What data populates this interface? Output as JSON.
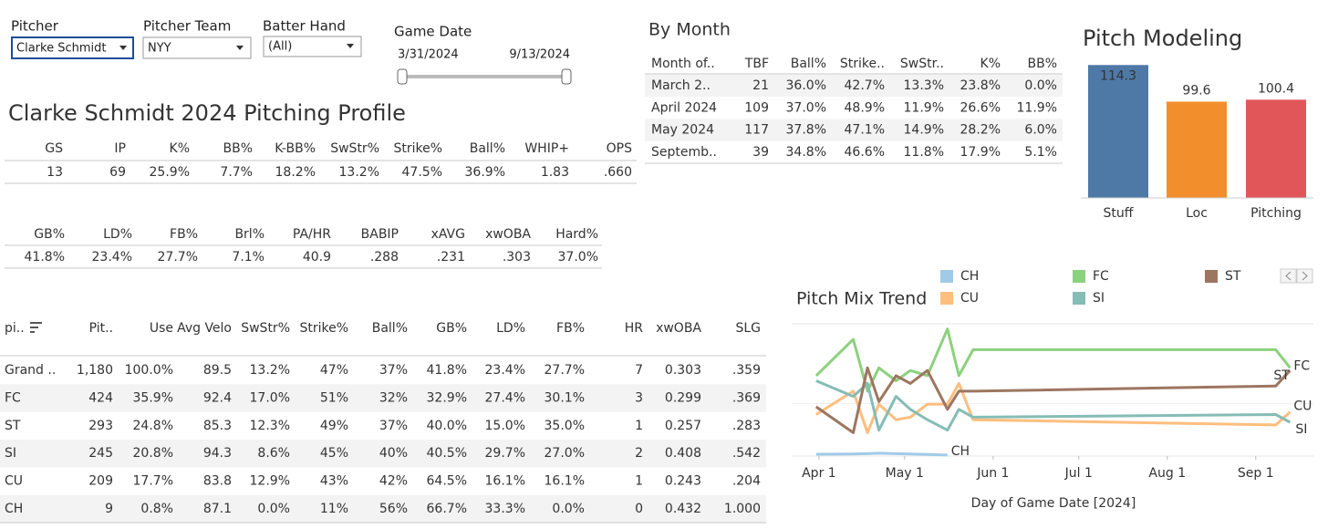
{
  "filters": [
    {
      "label": "Pitcher",
      "value": "Clarke Schmidt"
    },
    {
      "label": "Pitcher Team",
      "value": "NYY"
    },
    {
      "label": "Batter Hand",
      "value": "(All)"
    }
  ],
  "game_date": {
    "label": "Game Date",
    "start": "3/31/2024",
    "end": "9/13/2024"
  },
  "profile": {
    "title": "Clarke Schmidt 2024 Pitching Profile",
    "tables": [
      {
        "headers": [
          "GS",
          "IP",
          "K%",
          "BB%",
          "K-BB%",
          "SwStr%",
          "Strike%",
          "Ball%",
          "WHIP+",
          "OPS"
        ],
        "rows": [
          [
            "13",
            "69",
            "25.9%",
            "7.7%",
            "18.2%",
            "13.2%",
            "47.5%",
            "36.9%",
            "1.83",
            ".660"
          ]
        ]
      },
      {
        "headers": [
          "GB%",
          "LD%",
          "FB%",
          "Brl%",
          "PA/HR",
          "BABIP",
          "xAVG",
          "xwOBA",
          "Hard%"
        ],
        "rows": [
          [
            "41.8%",
            "23.4%",
            "27.7%",
            "7.1%",
            "40.9",
            ".288",
            ".231",
            ".303",
            "37.0%"
          ]
        ]
      }
    ]
  },
  "by_month": {
    "title": "By Month",
    "headers": [
      "Month of..",
      "TBF",
      "Ball%",
      "Strike..",
      "SwStr..",
      "K%",
      "BB%"
    ],
    "rows": [
      [
        "March 2..",
        "21",
        "36.0%",
        "42.7%",
        "13.3%",
        "23.8%",
        "0.0%"
      ],
      [
        "April 2024",
        "109",
        "37.0%",
        "48.9%",
        "11.9%",
        "26.6%",
        "11.9%"
      ],
      [
        "May 2024",
        "117",
        "37.8%",
        "47.1%",
        "14.9%",
        "28.2%",
        "6.0%"
      ],
      [
        "Septemb..",
        "39",
        "34.8%",
        "46.6%",
        "11.8%",
        "17.9%",
        "5.1%"
      ]
    ]
  },
  "pitch_table": {
    "headers": [
      "pi..",
      "Pit..",
      "Use",
      "Avg Velo",
      "SwStr%",
      "Strike%",
      "Ball%",
      "GB%",
      "LD%",
      "FB%",
      "HR",
      "xwOBA",
      "SLG"
    ],
    "rows": [
      [
        "Grand ..",
        "1,180",
        "100.0%",
        "89.5",
        "13.2%",
        "47%",
        "37%",
        "41.8%",
        "23.4%",
        "27.7%",
        "7",
        "0.303",
        ".359"
      ],
      [
        "FC",
        "424",
        "35.9%",
        "92.4",
        "17.0%",
        "51%",
        "32%",
        "32.9%",
        "27.4%",
        "30.1%",
        "3",
        "0.299",
        ".369"
      ],
      [
        "ST",
        "293",
        "24.8%",
        "85.3",
        "12.3%",
        "49%",
        "37%",
        "40.0%",
        "15.0%",
        "35.0%",
        "1",
        "0.257",
        ".283"
      ],
      [
        "SI",
        "245",
        "20.8%",
        "94.3",
        "8.6%",
        "45%",
        "40%",
        "40.5%",
        "29.7%",
        "27.0%",
        "2",
        "0.408",
        ".542"
      ],
      [
        "CU",
        "209",
        "17.7%",
        "83.8",
        "12.9%",
        "43%",
        "42%",
        "64.5%",
        "16.1%",
        "16.1%",
        "1",
        "0.243",
        ".204"
      ],
      [
        "CH",
        "9",
        "0.8%",
        "87.1",
        "0.0%",
        "11%",
        "56%",
        "66.7%",
        "33.3%",
        "0.0%",
        "0",
        "0.432",
        "1.000"
      ]
    ]
  },
  "chart_data": [
    {
      "type": "bar",
      "title": "Pitch Modeling",
      "categories": [
        "Stuff",
        "Loc",
        "Pitching"
      ],
      "values": [
        114.3,
        99.6,
        100.4
      ],
      "colors": [
        "#4e79a7",
        "#f28e2b",
        "#e15759"
      ],
      "ylim": [
        61,
        115.5
      ]
    },
    {
      "type": "line",
      "title": "Pitch Mix Trend",
      "x_label": "Day of Game Date [2024]",
      "x": [
        "2024-03-31",
        "2024-04-13",
        "2024-04-18",
        "2024-04-22",
        "2024-04-28",
        "2024-05-03",
        "2024-05-09",
        "2024-05-16",
        "2024-05-20",
        "2024-05-25",
        "2024-09-08",
        "2024-09-13"
      ],
      "series": [
        {
          "name": "CH",
          "color": "#a0cbe8",
          "values": [
            0.7,
            0.8,
            0.9,
            1.1,
            0.9,
            0.8,
            0.6,
            0.4,
            null,
            null,
            null,
            null
          ]
        },
        {
          "name": "CU",
          "color": "#ffbe7d",
          "values": [
            16,
            25,
            9,
            20,
            14,
            15,
            20,
            20,
            28,
            14,
            12,
            17
          ]
        },
        {
          "name": "FC",
          "color": "#8cd17d",
          "values": [
            31,
            45,
            25,
            34,
            29,
            33,
            31,
            49,
            31,
            41,
            41,
            34
          ]
        },
        {
          "name": "SI",
          "color": "#86bcb6",
          "values": [
            29,
            23,
            28,
            10,
            23,
            18,
            14,
            10,
            18,
            15,
            16,
            13
          ]
        },
        {
          "name": "ST",
          "color": "#9d7660",
          "values": [
            19,
            9,
            34,
            21,
            31,
            28,
            33,
            18,
            25,
            25,
            27,
            33
          ]
        }
      ],
      "xlim": [
        "2024-03-25",
        "2024-09-18"
      ],
      "ylim": [
        0,
        51
      ],
      "xticks": [
        {
          "value": "2024-04-01",
          "label": "Apr 1"
        },
        {
          "value": "2024-05-01",
          "label": "May 1"
        },
        {
          "value": "2024-06-01",
          "label": "Jun 1"
        },
        {
          "value": "2024-07-01",
          "label": "Jul 1"
        },
        {
          "value": "2024-08-01",
          "label": "Aug 1"
        },
        {
          "value": "2024-09-01",
          "label": "Sep 1"
        }
      ]
    }
  ]
}
